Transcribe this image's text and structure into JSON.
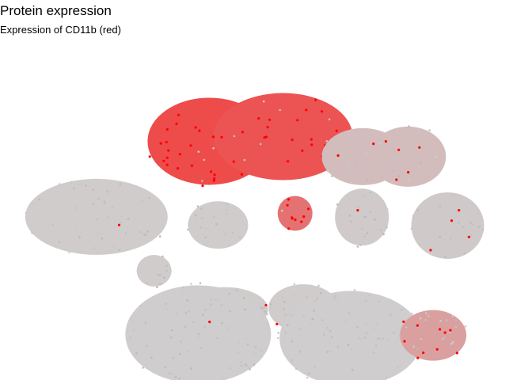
{
  "title": "Protein expression",
  "subtitle": "Expression of CD11b (red)",
  "chart_data": {
    "type": "scatter",
    "title": "Protein expression",
    "subtitle": "Expression of CD11b (red)",
    "xlabel": "",
    "ylabel": "",
    "axes_visible": false,
    "grid": false,
    "legend": "none",
    "colors": {
      "low": "#cfcfcf",
      "high": "#ff0000"
    },
    "clusters": [
      {
        "id": "c1",
        "cx": 0.383,
        "cy": 0.716,
        "points": 30,
        "level": 0.85
      },
      {
        "id": "c2",
        "cx": 0.535,
        "cy": 0.731,
        "points": 34,
        "level": 0.8
      },
      {
        "id": "c3",
        "cx": 0.7,
        "cy": 0.667,
        "points": 22,
        "level": 0.12
      },
      {
        "id": "c4",
        "cx": 0.793,
        "cy": 0.667,
        "points": 16,
        "level": 0.12
      },
      {
        "id": "c5",
        "cx": 0.56,
        "cy": 0.486,
        "points": 10,
        "level": 0.6
      },
      {
        "id": "c6",
        "cx": 0.15,
        "cy": 0.475,
        "points": 60,
        "level": 0.02
      },
      {
        "id": "c7",
        "cx": 0.401,
        "cy": 0.449,
        "points": 26,
        "level": 0.02
      },
      {
        "id": "c8",
        "cx": 0.698,
        "cy": 0.474,
        "points": 30,
        "level": 0.03
      },
      {
        "id": "c9",
        "cx": 0.875,
        "cy": 0.447,
        "points": 36,
        "level": 0.04
      },
      {
        "id": "c10",
        "cx": 0.269,
        "cy": 0.303,
        "points": 14,
        "level": 0.02
      },
      {
        "id": "c11",
        "cx": 0.416,
        "cy": 0.18,
        "points": 38,
        "level": 0.02
      },
      {
        "id": "c12",
        "cx": 0.577,
        "cy": 0.184,
        "points": 40,
        "level": 0.02
      },
      {
        "id": "c13",
        "cx": 0.36,
        "cy": 0.1,
        "points": 90,
        "level": 0.01
      },
      {
        "id": "c14",
        "cx": 0.675,
        "cy": 0.087,
        "points": 90,
        "level": 0.01
      },
      {
        "id": "c15",
        "cx": 0.845,
        "cy": 0.097,
        "points": 30,
        "level": 0.3
      }
    ]
  }
}
